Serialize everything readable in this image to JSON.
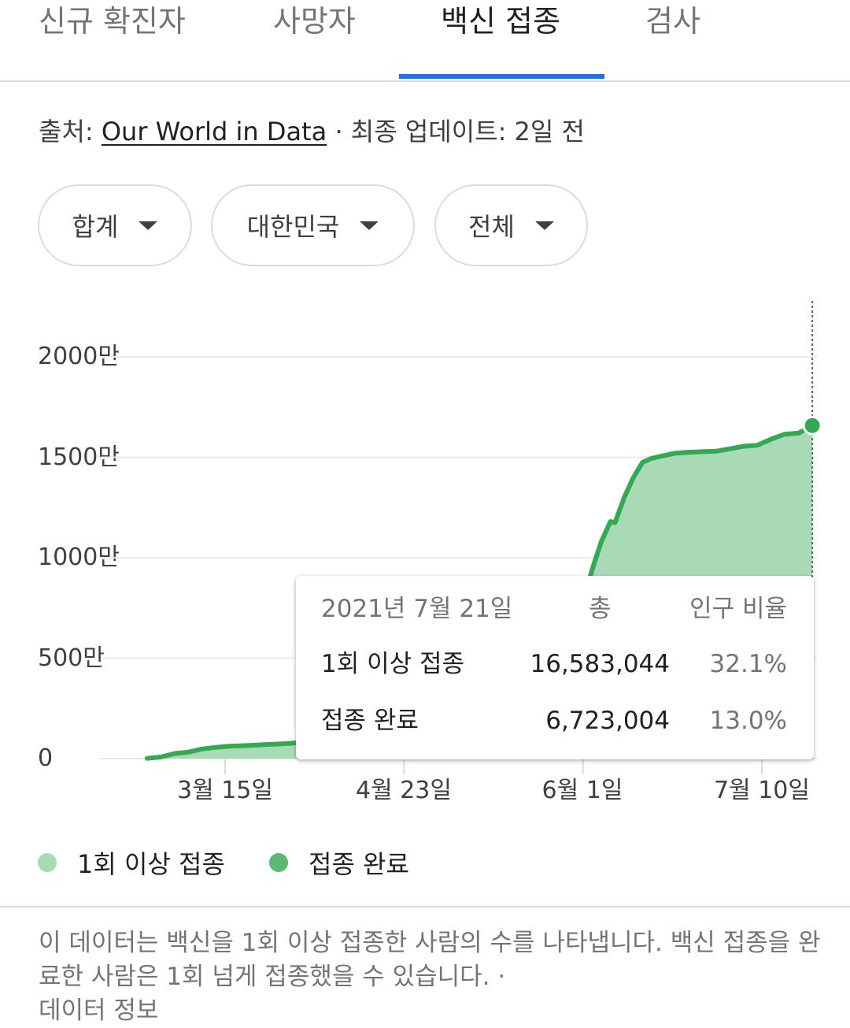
{
  "tabs": [
    {
      "label": "신규 확진자"
    },
    {
      "label": "사망자"
    },
    {
      "label": "백신 접종"
    },
    {
      "label": "검사"
    }
  ],
  "source": {
    "prefix": "출처: ",
    "link": "Our World in Data",
    "suffix": " · 최종 업데이트: 2일 전"
  },
  "filters": [
    {
      "label": "합계"
    },
    {
      "label": "대한민국"
    },
    {
      "label": "전체"
    }
  ],
  "colors": {
    "accent": "#1a73e8",
    "series_line": "#34a853",
    "series_fill": "#a8dab5",
    "legend_first_dose": "#a8dab5",
    "legend_full": "#5bb974"
  },
  "chart_data": {
    "type": "area",
    "y_unit": "만",
    "ylim": [
      0,
      2000
    ],
    "yticks": [
      0,
      500,
      1000,
      1500,
      2000
    ],
    "ytick_labels": [
      "0",
      "500만",
      "1000만",
      "1500만",
      "2000만"
    ],
    "xtick_labels": [
      "3월 15일",
      "4월 23일",
      "6월 1일",
      "7월 10일"
    ],
    "xtick_dates": [
      "2021-03-15",
      "2021-04-23",
      "2021-06-01",
      "2021-07-10"
    ],
    "grid": true,
    "legend_position": "bottom",
    "series": [
      {
        "name": "1회 이상 접종",
        "x": [
          "2021-02-26",
          "2021-03-01",
          "2021-03-04",
          "2021-03-07",
          "2021-03-10",
          "2021-03-13",
          "2021-03-16",
          "2021-03-20",
          "2021-03-24",
          "2021-03-28",
          "2021-04-01",
          "2021-04-05",
          "2021-04-08",
          "2021-04-11",
          "2021-04-14",
          "2021-04-17",
          "2021-04-20",
          "2021-04-23",
          "2021-04-27",
          "2021-05-01",
          "2021-05-05",
          "2021-05-09",
          "2021-05-13",
          "2021-05-17",
          "2021-05-21",
          "2021-05-25",
          "2021-05-28",
          "2021-06-01",
          "2021-06-03",
          "2021-06-05",
          "2021-06-07",
          "2021-06-08",
          "2021-06-10",
          "2021-06-12",
          "2021-06-14",
          "2021-06-16",
          "2021-06-18",
          "2021-06-21",
          "2021-06-24",
          "2021-06-27",
          "2021-06-30",
          "2021-07-03",
          "2021-07-06",
          "2021-07-09",
          "2021-07-12",
          "2021-07-15",
          "2021-07-18",
          "2021-07-21"
        ],
        "values": [
          1,
          8,
          25,
          32,
          48,
          56,
          62,
          65,
          70,
          74,
          80,
          88,
          100,
          115,
          130,
          148,
          165,
          185,
          240,
          300,
          340,
          365,
          380,
          390,
          420,
          480,
          560,
          780,
          940,
          1080,
          1180,
          1175,
          1300,
          1400,
          1475,
          1495,
          1505,
          1520,
          1525,
          1528,
          1530,
          1542,
          1555,
          1560,
          1590,
          1615,
          1620,
          1658
        ]
      },
      {
        "name": "접종 완료"
      }
    ],
    "tooltip": {
      "date": "2021년 7월 21일",
      "col_total": "총",
      "col_ratio": "인구 비율",
      "rows": [
        {
          "label": "1회 이상 접종",
          "total": "16,583,044",
          "ratio": "32.1%"
        },
        {
          "label": "접종 완료",
          "total": "6,723,004",
          "ratio": "13.0%"
        }
      ]
    }
  },
  "legend": [
    {
      "label": "1회 이상 접종"
    },
    {
      "label": "접종 완료"
    }
  ],
  "note": {
    "text": "이 데이터는 백신을 1회 이상 접종한 사람의 수를 나타냅니다. 백신 접종을 완료한 사람은 1회 넘게 접종했을 수 있습니다. ·",
    "link": "데이터 정보"
  }
}
